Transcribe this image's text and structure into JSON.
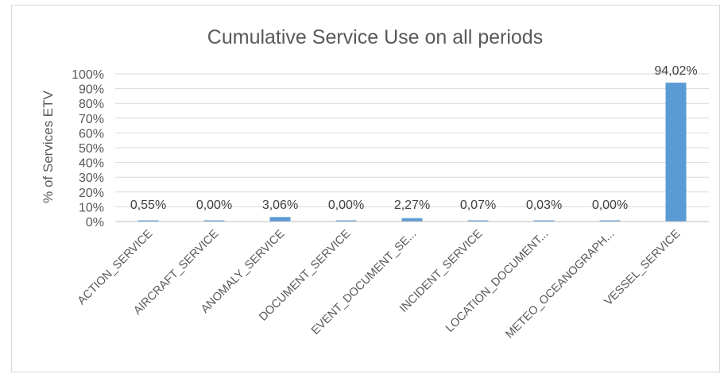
{
  "chart_data": {
    "type": "bar",
    "title": "Cumulative Service  Use on all periods",
    "ylabel": "% of  Services ETV",
    "xlabel": "",
    "ylim": [
      0,
      100
    ],
    "yticks": [
      "0%",
      "10%",
      "20%",
      "30%",
      "40%",
      "50%",
      "60%",
      "70%",
      "80%",
      "90%",
      "100%"
    ],
    "grid": true,
    "bar_color": "#5b9bd5",
    "categories": [
      "ACTION_SERVICE",
      "AIRCRAFT_SERVICE",
      "ANOMALY_SERVICE",
      "DOCUMENT_SERVICE",
      "EVENT_DOCUMENT_SE...",
      "INCIDENT_SERVICE",
      "LOCATION_DOCUMENT...",
      "METEO_OCEANOGRAPH...",
      "VESSEL_SERVICE"
    ],
    "values": [
      0.55,
      0.0,
      3.06,
      0.0,
      2.27,
      0.07,
      0.03,
      0.0,
      94.02
    ],
    "data_labels": [
      "0,55%",
      "0,00%",
      "3,06%",
      "0,00%",
      "2,27%",
      "0,07%",
      "0,03%",
      "0,00%",
      "94,02%"
    ]
  }
}
